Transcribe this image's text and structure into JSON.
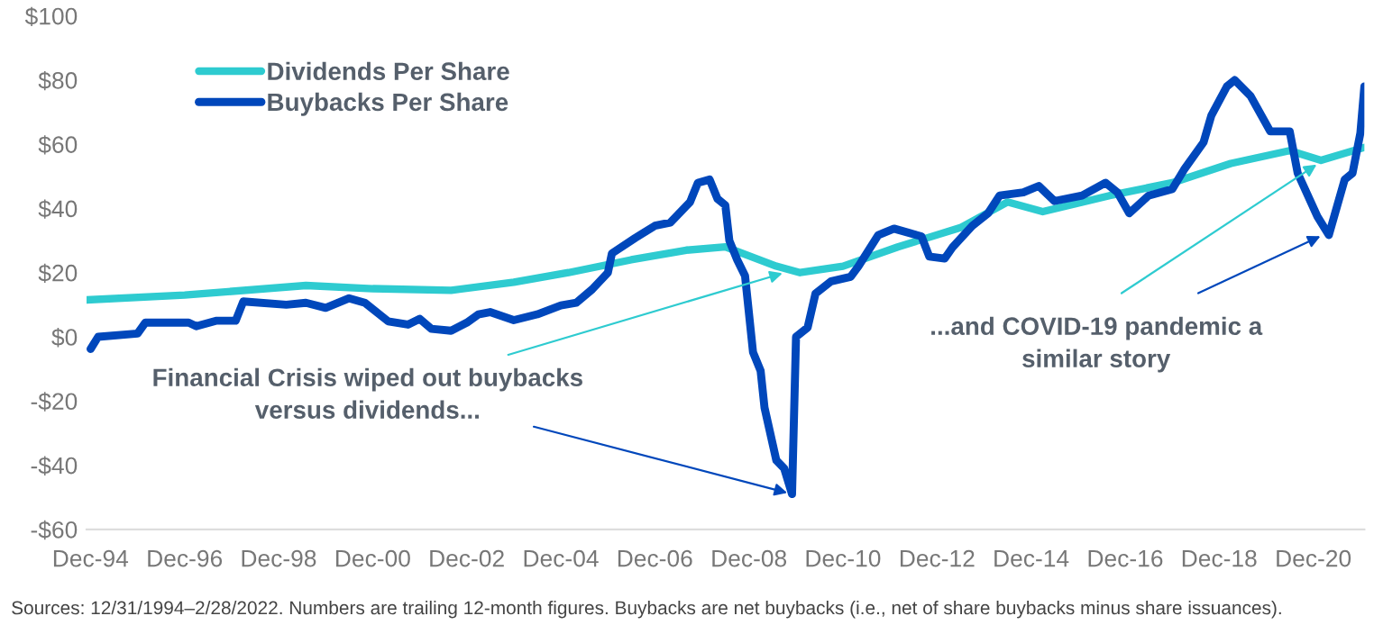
{
  "chart_data": {
    "type": "line",
    "xlim": [
      "1994-12",
      "2022-02"
    ],
    "ylim": [
      -60,
      100
    ],
    "xticks": [
      {
        "value": "1994-12-31",
        "label": "Dec-94"
      },
      {
        "value": "1996-12-31",
        "label": "Dec-96"
      },
      {
        "value": "1998-12-31",
        "label": "Dec-98"
      },
      {
        "value": "2000-12-31",
        "label": "Dec-00"
      },
      {
        "value": "2002-12-31",
        "label": "Dec-02"
      },
      {
        "value": "2004-12-31",
        "label": "Dec-04"
      },
      {
        "value": "2006-12-31",
        "label": "Dec-06"
      },
      {
        "value": "2008-12-31",
        "label": "Dec-08"
      },
      {
        "value": "2010-12-31",
        "label": "Dec-10"
      },
      {
        "value": "2012-12-31",
        "label": "Dec-12"
      },
      {
        "value": "2014-12-31",
        "label": "Dec-14"
      },
      {
        "value": "2016-12-31",
        "label": "Dec-16"
      },
      {
        "value": "2018-12-31",
        "label": "Dec-18"
      },
      {
        "value": "2020-12-31",
        "label": "Dec-20"
      }
    ],
    "yticks": [
      {
        "value": -60,
        "label": "-$60"
      },
      {
        "value": -40,
        "label": "-$40"
      },
      {
        "value": -20,
        "label": "-$20"
      },
      {
        "value": 0,
        "label": "$0"
      },
      {
        "value": 20,
        "label": "$20"
      },
      {
        "value": 40,
        "label": "$40"
      },
      {
        "value": 60,
        "label": "$60"
      },
      {
        "value": 80,
        "label": "$80"
      },
      {
        "value": 100,
        "label": "$100"
      }
    ],
    "grid": false,
    "legend": "top left",
    "marker": "none",
    "line_style": "solid",
    "series": [
      {
        "name": "Dividends Per Share",
        "color": "#2ecbd0",
        "x": [
          "1994-12",
          "1997-01",
          "1999-08",
          "2001-01",
          "2002-09",
          "2004-01",
          "2005-03",
          "2006-07",
          "2007-09",
          "2008-07",
          "2009-08",
          "2010-02",
          "2011-01",
          "2012-03",
          "2013-07",
          "2014-07",
          "2015-04",
          "2016-09",
          "2018-01",
          "2019-04",
          "2020-07",
          "2021-03",
          "2022-02"
        ],
        "values": [
          11.5,
          13,
          16,
          15,
          14.5,
          17,
          20,
          24,
          27,
          28,
          22,
          20,
          22,
          28,
          34,
          42,
          39,
          44,
          48,
          54,
          58,
          55,
          59
        ]
      },
      {
        "name": "Buybacks Per Share",
        "color": "#0047bb",
        "x": [
          "1995-01",
          "1995-03",
          "1996-01",
          "1996-03",
          "1997-02",
          "1997-04",
          "1997-09",
          "1998-02",
          "1998-04",
          "1999-03",
          "1999-08",
          "2000-01",
          "2000-07",
          "2000-11",
          "2001-05",
          "2001-10",
          "2002-01",
          "2002-04",
          "2002-09",
          "2003-01",
          "2003-04",
          "2003-07",
          "2004-01",
          "2004-07",
          "2005-01",
          "2005-05",
          "2005-09",
          "2006-01",
          "2006-02",
          "2006-08",
          "2007-01",
          "2007-05",
          "2007-10",
          "2007-12",
          "2008-03",
          "2008-05",
          "2008-07",
          "2008-08",
          "2008-10",
          "2008-12",
          "2009-02",
          "2009-04",
          "2009-05",
          "2009-08",
          "2009-10",
          "2009-12",
          "2010-01",
          "2010-04",
          "2010-06",
          "2010-10",
          "2011-03",
          "2011-05",
          "2011-10",
          "2012-02",
          "2012-09",
          "2012-11",
          "2013-03",
          "2013-05",
          "2013-10",
          "2014-02",
          "2014-05",
          "2014-11",
          "2015-03",
          "2015-07",
          "2016-02",
          "2016-08",
          "2016-11",
          "2017-02",
          "2017-07",
          "2018-01",
          "2018-04",
          "2018-09",
          "2018-11",
          "2019-03",
          "2019-05",
          "2019-09",
          "2020-02",
          "2020-07",
          "2020-09",
          "2021-02",
          "2021-05",
          "2021-09",
          "2021-11",
          "2022-01",
          "2022-02"
        ],
        "values": [
          -3.8,
          0,
          1,
          4.4,
          4.4,
          3.3,
          5,
          5,
          11,
          10,
          10.6,
          9,
          12,
          10.6,
          4.8,
          3.8,
          5.6,
          2.5,
          1.9,
          4.4,
          7,
          7.7,
          5.2,
          7,
          9.8,
          10.6,
          14.8,
          20,
          26,
          30.8,
          34.6,
          35.6,
          42,
          48,
          49,
          43,
          41,
          30,
          24,
          19,
          -4.8,
          -10.6,
          -22,
          -38.5,
          -41,
          -49,
          0,
          2.9,
          13.5,
          17.3,
          18.7,
          22,
          31.7,
          33.7,
          31.3,
          25,
          24.4,
          27.9,
          34.6,
          38.5,
          44,
          45,
          47,
          42.3,
          44,
          48,
          45,
          38.5,
          44,
          46,
          52,
          60.6,
          69,
          78,
          80,
          75,
          64,
          64,
          51,
          37.5,
          31.7,
          49,
          51,
          63.5,
          78
        ]
      }
    ],
    "annotations": [
      {
        "text": "Financial Crisis wiped out buybacks\nversus dividends...",
        "x": "2009-12",
        "y": -49
      },
      {
        "text": "...and COVID-19 pandemic a\nsimilar story",
        "x": "2021-04",
        "y": 32
      },
      "Sources: 12/31/1994–2/28/2022. Numbers are trailing 12-month figures. Buybacks are net buybacks (i.e., net of share buybacks minus share issuances)."
    ]
  }
}
